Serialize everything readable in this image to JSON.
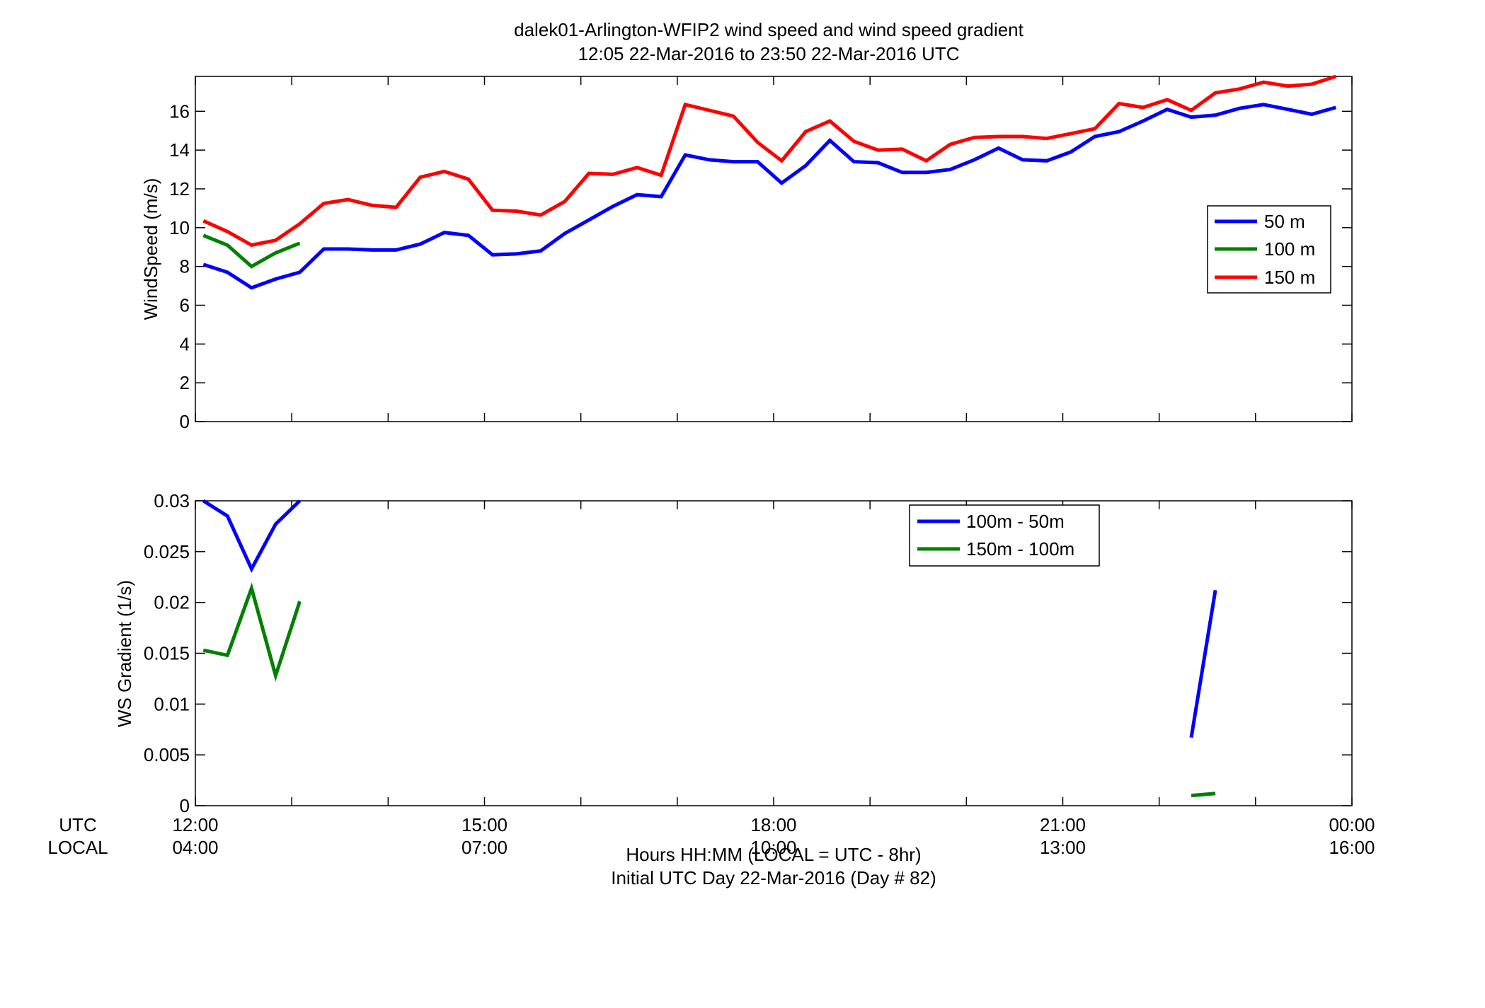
{
  "figure": {
    "title_line1": "dalek01-Arlington-WFIP2  wind speed and wind speed gradient",
    "title_line2": "12:05 22-Mar-2016 to 23:50 22-Mar-2016  UTC",
    "row_label_utc": "UTC",
    "row_label_local": "LOCAL",
    "xlabel_line1": "Hours HH:MM  (LOCAL = UTC - 8hr)",
    "xlabel_line2": "Initial UTC Day 22-Mar-2016 (Day # 82)",
    "utc_ticks": [
      "12:00",
      "15:00",
      "18:00",
      "21:00",
      "00:00"
    ],
    "local_ticks": [
      "04:00",
      "07:00",
      "10:00",
      "13:00",
      "16:00"
    ]
  },
  "chart_data": [
    {
      "type": "line",
      "title": "",
      "xlabel": "",
      "ylabel": "WindSpeed (m/s)",
      "xlim": [
        12.0,
        24.0
      ],
      "ylim": [
        0,
        17.8
      ],
      "yticks": [
        0,
        2,
        4,
        6,
        8,
        10,
        12,
        14,
        16
      ],
      "legend_position": "right",
      "series": [
        {
          "name": "50 m",
          "color": "#0000ff",
          "x": [
            12.083,
            12.333,
            12.583,
            12.833,
            13.083,
            13.333,
            13.583,
            13.833,
            14.083,
            14.333,
            14.583,
            14.833,
            15.083,
            15.333,
            15.583,
            15.833,
            16.083,
            16.333,
            16.583,
            16.833,
            17.083,
            17.333,
            17.583,
            17.833,
            18.083,
            18.333,
            18.583,
            18.833,
            19.083,
            19.333,
            19.583,
            19.833,
            20.083,
            20.333,
            20.583,
            20.833,
            21.083,
            21.333,
            21.583,
            21.833,
            22.083,
            22.333,
            22.583,
            22.833,
            23.083,
            23.333,
            23.583,
            23.833
          ],
          "values": [
            8.1,
            7.7,
            6.9,
            7.35,
            7.7,
            8.9,
            8.9,
            8.85,
            8.85,
            9.15,
            9.75,
            9.6,
            8.6,
            8.65,
            8.8,
            9.7,
            10.4,
            11.1,
            11.7,
            11.6,
            13.75,
            13.5,
            13.4,
            13.4,
            12.3,
            13.2,
            14.5,
            13.4,
            13.35,
            12.85,
            12.85,
            13.0,
            13.5,
            14.1,
            13.5,
            13.45,
            13.9,
            14.7,
            14.95,
            15.5,
            16.1,
            15.7,
            15.8,
            16.15,
            16.35,
            16.1,
            15.85,
            16.2
          ]
        },
        {
          "name": "100 m",
          "color": "#008000",
          "x": [
            12.083,
            12.333,
            12.583,
            12.833,
            13.083
          ],
          "values": [
            9.6,
            9.1,
            8.0,
            8.7,
            9.2
          ]
        },
        {
          "name": "150 m",
          "color": "#ff0000",
          "x": [
            12.083,
            12.333,
            12.583,
            12.833,
            13.083,
            13.333,
            13.583,
            13.833,
            14.083,
            14.333,
            14.583,
            14.833,
            15.083,
            15.333,
            15.583,
            15.833,
            16.083,
            16.333,
            16.583,
            16.833,
            17.083,
            17.333,
            17.583,
            17.833,
            18.083,
            18.333,
            18.583,
            18.833,
            19.083,
            19.333,
            19.583,
            19.833,
            20.083,
            20.333,
            20.583,
            20.833,
            21.083,
            21.333,
            21.583,
            21.833,
            22.083,
            22.333,
            22.583,
            22.833,
            23.083,
            23.333,
            23.583,
            23.833
          ],
          "values": [
            10.35,
            9.8,
            9.1,
            9.35,
            10.2,
            11.25,
            11.45,
            11.15,
            11.05,
            12.6,
            12.9,
            12.5,
            10.9,
            10.85,
            10.65,
            11.35,
            12.8,
            12.75,
            13.1,
            12.7,
            16.35,
            16.05,
            15.75,
            14.4,
            13.45,
            14.95,
            15.5,
            14.45,
            14.0,
            14.05,
            13.45,
            14.3,
            14.65,
            14.7,
            14.7,
            14.6,
            14.85,
            15.1,
            16.4,
            16.2,
            16.6,
            16.05,
            16.95,
            17.15,
            17.5,
            17.3,
            17.4,
            17.8
          ]
        }
      ]
    },
    {
      "type": "line",
      "title": "",
      "xlabel": "",
      "ylabel": "WS Gradient (1/s)",
      "xlim": [
        12.0,
        24.0
      ],
      "ylim": [
        0,
        0.03
      ],
      "yticks": [
        0,
        0.005,
        0.01,
        0.015,
        0.02,
        0.025,
        0.03
      ],
      "legend_position": "top-right",
      "series": [
        {
          "name": "100m - 50m",
          "color": "#0000ff",
          "segments": [
            {
              "x": [
                12.083,
                12.333,
                12.583,
                12.833,
                13.083
              ],
              "values": [
                0.0302,
                0.0285,
                0.0233,
                0.0277,
                0.0302
              ]
            },
            {
              "x": [
                22.333,
                22.583
              ],
              "values": [
                0.0067,
                0.0212
              ]
            }
          ]
        },
        {
          "name": "150m - 100m",
          "color": "#008000",
          "segments": [
            {
              "x": [
                12.083,
                12.333,
                12.583,
                12.833,
                13.083
              ],
              "values": [
                0.0153,
                0.0148,
                0.0214,
                0.0128,
                0.0201
              ]
            },
            {
              "x": [
                22.333,
                22.583
              ],
              "values": [
                0.001,
                0.0012
              ]
            }
          ]
        }
      ]
    }
  ]
}
